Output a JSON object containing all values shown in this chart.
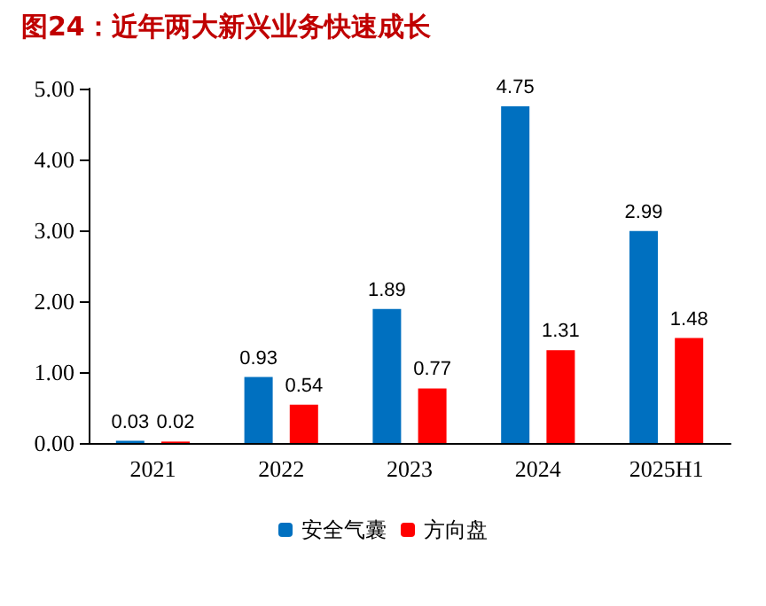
{
  "chart_data": {
    "type": "bar",
    "title": "图24：近年两大新兴业务快速成长",
    "categories": [
      "2021",
      "2022",
      "2023",
      "2024",
      "2025H1"
    ],
    "series": [
      {
        "name": "安全气囊",
        "color": "#0070c0",
        "values": [
          0.03,
          0.93,
          1.89,
          4.75,
          2.99
        ]
      },
      {
        "name": "方向盘",
        "color": "#ff0000",
        "values": [
          0.02,
          0.54,
          0.77,
          1.31,
          1.48
        ]
      }
    ],
    "ylim": [
      0,
      5
    ],
    "yticks": [
      {
        "value": 0,
        "label": "0.00"
      },
      {
        "value": 1,
        "label": "1.00"
      },
      {
        "value": 2,
        "label": "2.00"
      },
      {
        "value": 3,
        "label": "3.00"
      },
      {
        "value": 4,
        "label": "4.00"
      },
      {
        "value": 5,
        "label": "5.00"
      }
    ],
    "data_labels": true,
    "grid": false,
    "legend": "bottom"
  }
}
